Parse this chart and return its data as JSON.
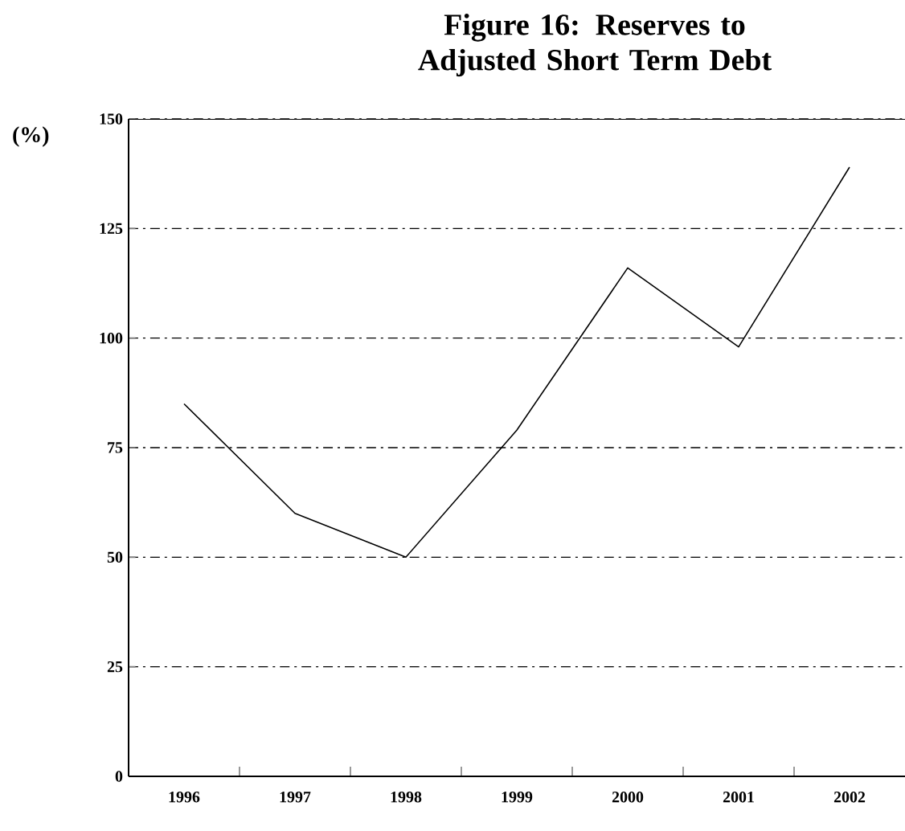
{
  "chart_data": {
    "type": "line",
    "title": "Figure 16: Reserves to Adjusted Short Term Debt",
    "ylabel": "(%)",
    "categories": [
      "1996",
      "1997",
      "1998",
      "1999",
      "2000",
      "2001",
      "2002"
    ],
    "series": [
      {
        "color": "#000000",
        "values": [
          85,
          60,
          50,
          79,
          116,
          98,
          139
        ]
      }
    ],
    "ylim": [
      0,
      150
    ],
    "yticks": [
      0,
      25,
      50,
      75,
      100,
      125,
      150
    ],
    "grid": "y",
    "marker": "none",
    "line_style": "solid"
  }
}
